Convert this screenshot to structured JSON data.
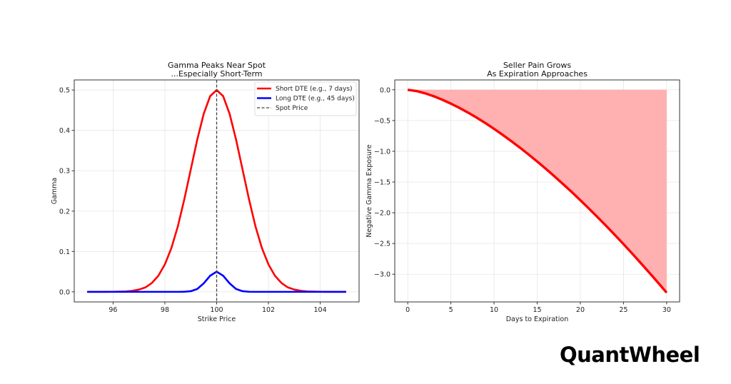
{
  "brand": {
    "logo_text": "QuantWheel"
  },
  "chart_data": [
    {
      "type": "line",
      "title": [
        "Gamma Peaks Near Spot",
        "...Especially Short-Term"
      ],
      "xlabel": "Strike Price",
      "ylabel": "Gamma",
      "xlim": [
        94.5,
        105.5
      ],
      "ylim": [
        -0.025,
        0.525
      ],
      "xticks": [
        96,
        98,
        100,
        102,
        104
      ],
      "yticks": [
        0.0,
        0.1,
        0.2,
        0.3,
        0.4,
        0.5
      ],
      "xtick_labels": [
        "96",
        "98",
        "100",
        "102",
        "104"
      ],
      "ytick_labels": [
        "0.0",
        "0.1",
        "0.2",
        "0.3",
        "0.4",
        "0.5"
      ],
      "grid": true,
      "legend_placement": "top-right",
      "x": [
        95,
        95.25,
        95.5,
        95.75,
        96,
        96.25,
        96.5,
        96.75,
        97,
        97.25,
        97.5,
        97.75,
        98,
        98.25,
        98.5,
        98.75,
        99,
        99.25,
        99.5,
        99.75,
        100,
        100.25,
        100.5,
        100.75,
        101,
        101.25,
        101.5,
        101.75,
        102,
        102.25,
        102.5,
        102.75,
        103,
        103.25,
        103.5,
        103.75,
        104,
        104.25,
        104.5,
        104.75,
        105
      ],
      "series": [
        {
          "name": "Short DTE (e.g., 7 days)",
          "color": "#ff0000",
          "values": [
            0,
            0,
            0,
            0.0001,
            0.0002,
            0.0005,
            0.0011,
            0.0025,
            0.0056,
            0.011,
            0.022,
            0.04,
            0.068,
            0.108,
            0.162,
            0.229,
            0.303,
            0.377,
            0.441,
            0.485,
            0.5,
            0.485,
            0.441,
            0.377,
            0.303,
            0.229,
            0.162,
            0.108,
            0.068,
            0.04,
            0.022,
            0.011,
            0.0056,
            0.0025,
            0.0011,
            0.0005,
            0.0002,
            0.0001,
            0,
            0,
            0
          ]
        },
        {
          "name": "Long DTE (e.g., 45 days)",
          "color": "#0000ff",
          "values": [
            0,
            0,
            0,
            0,
            0,
            0,
            0,
            0,
            0,
            0,
            0,
            0,
            0,
            0,
            0,
            0.0002,
            0.0016,
            0.007,
            0.021,
            0.04,
            0.05,
            0.04,
            0.021,
            0.007,
            0.0016,
            0.0002,
            0,
            0,
            0,
            0,
            0,
            0,
            0,
            0,
            0,
            0,
            0,
            0,
            0,
            0,
            0
          ]
        }
      ],
      "vline": {
        "name": "Spot Price",
        "x": 100,
        "color": "#444444",
        "style": "dashed"
      }
    },
    {
      "type": "area",
      "title": [
        "Seller Pain Grows",
        "As Expiration Approaches"
      ],
      "xlabel": "Days to Expiration",
      "ylabel": "Negative Gamma Exposure",
      "xlim": [
        -1.5,
        31.5
      ],
      "ylim": [
        -3.45,
        0.16
      ],
      "xticks": [
        0,
        5,
        10,
        15,
        20,
        25,
        30
      ],
      "yticks": [
        0.0,
        -0.5,
        -1.0,
        -1.5,
        -2.0,
        -2.5,
        -3.0
      ],
      "xtick_labels": [
        "0",
        "5",
        "10",
        "15",
        "20",
        "25",
        "30"
      ],
      "ytick_labels": [
        "0.0",
        "−0.5",
        "−1.0",
        "−1.5",
        "−2.0",
        "−2.5",
        "−3.0"
      ],
      "grid": true,
      "x": [
        0,
        1,
        2,
        3,
        4,
        5,
        6,
        7,
        8,
        9,
        10,
        11,
        12,
        13,
        14,
        15,
        16,
        17,
        18,
        19,
        20,
        21,
        22,
        23,
        24,
        25,
        26,
        27,
        28,
        29,
        30
      ],
      "values": [
        0,
        -0.02,
        -0.057,
        -0.104,
        -0.161,
        -0.225,
        -0.295,
        -0.372,
        -0.454,
        -0.542,
        -0.635,
        -0.733,
        -0.835,
        -0.941,
        -1.052,
        -1.167,
        -1.285,
        -1.408,
        -1.534,
        -1.663,
        -1.796,
        -1.933,
        -2.072,
        -2.215,
        -2.361,
        -2.51,
        -2.662,
        -2.818,
        -2.976,
        -3.136,
        -3.3
      ],
      "line_color": "#ff0000",
      "fill_color": "#ffb0b0"
    }
  ]
}
